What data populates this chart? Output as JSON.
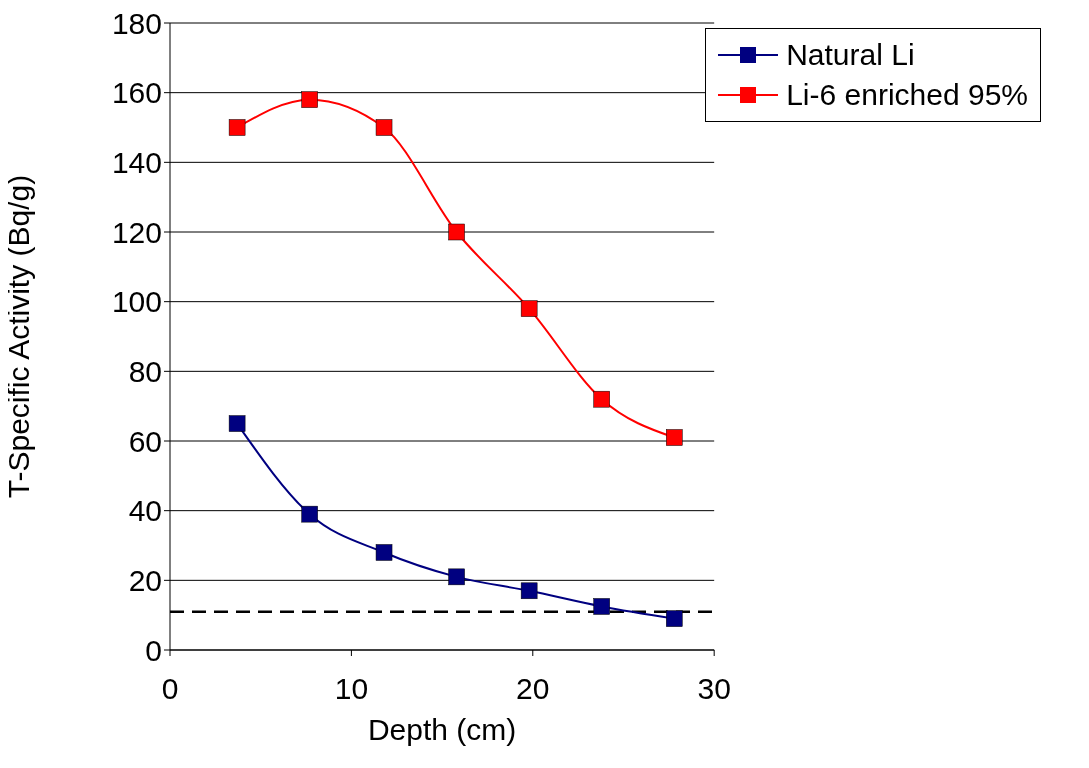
{
  "chart_data": {
    "type": "line",
    "xlabel": "Depth (cm)",
    "ylabel": "T-Specific Activity (Bq/g)",
    "x": [
      3.7,
      7.7,
      11.8,
      15.8,
      19.8,
      23.8,
      27.8
    ],
    "series": [
      {
        "name": "Natural Li",
        "color": "#000080",
        "values": [
          65,
          39,
          28,
          21,
          17,
          12.5,
          9
        ]
      },
      {
        "name": "Li-6 enriched 95%",
        "color": "#ff0000",
        "values": [
          150,
          158,
          150,
          120,
          98,
          72,
          61
        ]
      }
    ],
    "xlim": [
      0,
      30
    ],
    "xticks": [
      0,
      10,
      20,
      30
    ],
    "ylim": [
      0,
      180
    ],
    "yticks": [
      0,
      20,
      40,
      60,
      80,
      100,
      120,
      140,
      160,
      180
    ],
    "grid": "y",
    "legend": "top right",
    "marker": "square",
    "line_style": "solid",
    "ref_lines": [
      {
        "axis": "y",
        "value": 11,
        "color": "#000000",
        "line_style": "dashed"
      }
    ]
  }
}
